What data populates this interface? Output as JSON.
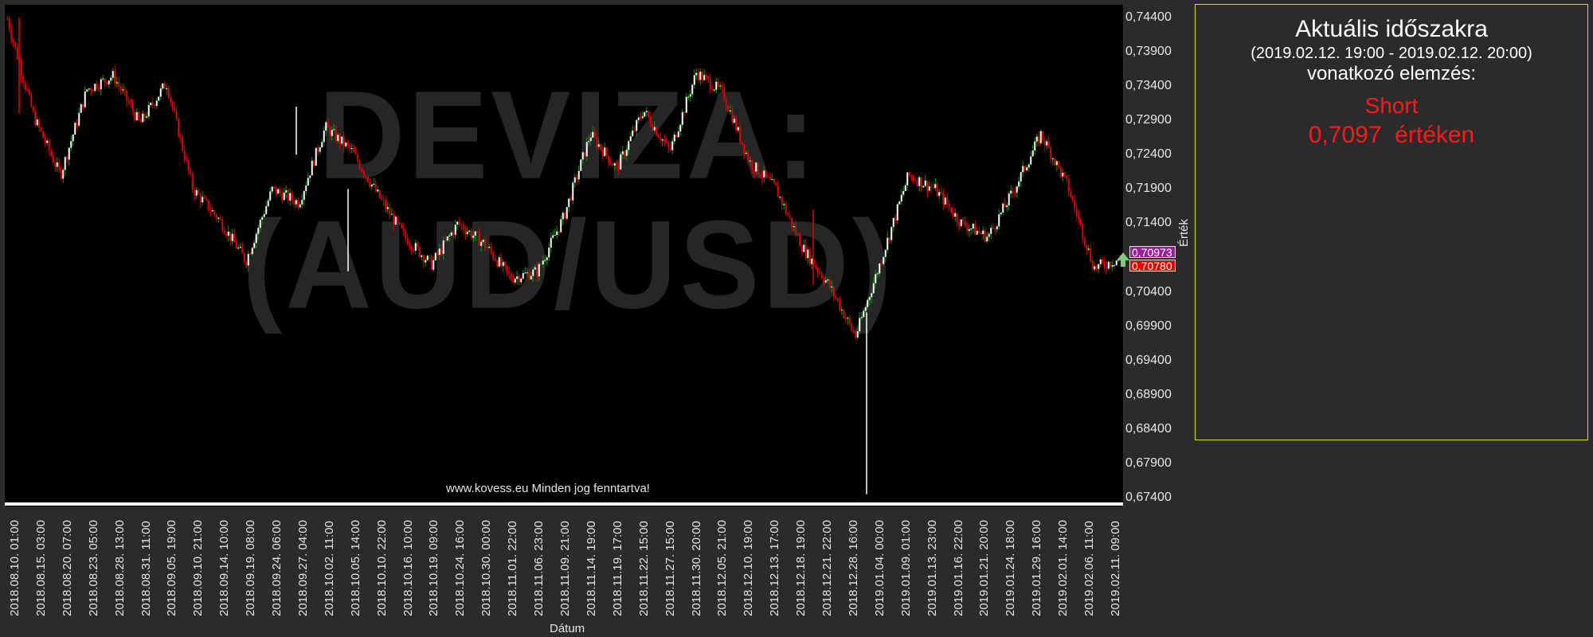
{
  "chart_data": {
    "type": "candlestick",
    "instrument_watermark_line1": "DEVIZA:",
    "instrument_watermark_line2": "(AUD/USD)",
    "xlabel": "Dátum",
    "ylabel": "Érték",
    "ylim": [
      0.674,
      0.744
    ],
    "y_ticks": [
      "0,74400",
      "0,73900",
      "0,73400",
      "0,72900",
      "0,72400",
      "0,71900",
      "0,71400",
      "0,70400",
      "0,69900",
      "0,69400",
      "0,68900",
      "0,68400",
      "0,67900",
      "0,67400"
    ],
    "x_ticks": [
      "2018.08.10. 01:00",
      "2018.08.15. 03:00",
      "2018.08.20. 07:00",
      "2018.08.23. 05:00",
      "2018.08.28. 13:00",
      "2018.08.31. 11:00",
      "2018.09.05. 19:00",
      "2018.09.10. 21:00",
      "2018.09.14. 10:00",
      "2018.09.19. 08:00",
      "2018.09.24. 06:00",
      "2018.09.27. 04:00",
      "2018.10.02. 11:00",
      "2018.10.05. 14:00",
      "2018.10.10. 22:00",
      "2018.10.16. 10:00",
      "2018.10.19. 09:00",
      "2018.10.24. 16:00",
      "2018.10.30. 00:00",
      "2018.11.01. 22:00",
      "2018.11.06. 23:00",
      "2018.11.09. 21:00",
      "2018.11.14. 19:00",
      "2018.11.19. 17:00",
      "2018.11.22. 15:00",
      "2018.11.27. 15:00",
      "2018.11.30. 20:00",
      "2018.12.05. 21:00",
      "2018.12.10. 19:00",
      "2018.12.13. 17:00",
      "2018.12.18. 19:00",
      "2018.12.21. 22:00",
      "2018.12.28. 16:00",
      "2019.01.04. 00:00",
      "2019.01.09. 01:00",
      "2019.01.13. 23:00",
      "2019.01.16. 22:00",
      "2019.01.21. 20:00",
      "2019.01.24. 18:00",
      "2019.01.29. 16:00",
      "2019.02.01. 14:00",
      "2019.02.06. 11:00",
      "2019.02.11. 09:00"
    ],
    "price_path": [
      [
        0.7445,
        0.743
      ],
      [
        0.729,
        0.73
      ],
      [
        0.722,
        0.72
      ],
      [
        0.731,
        0.736
      ],
      [
        0.738,
        0.733
      ],
      [
        0.726,
        0.731
      ],
      [
        0.736,
        0.733
      ],
      [
        0.72,
        0.718
      ],
      [
        0.717,
        0.712
      ],
      [
        0.709,
        0.708
      ],
      [
        0.72,
        0.718
      ],
      [
        0.714,
        0.72
      ],
      [
        0.729,
        0.727
      ],
      [
        0.725,
        0.724
      ],
      [
        0.721,
        0.715
      ],
      [
        0.716,
        0.708
      ],
      [
        0.706,
        0.71
      ],
      [
        0.713,
        0.715
      ],
      [
        0.712,
        0.71
      ],
      [
        0.706,
        0.706
      ],
      [
        0.708,
        0.706
      ],
      [
        0.708,
        0.722
      ],
      [
        0.726,
        0.728
      ],
      [
        0.72,
        0.724
      ],
      [
        0.731,
        0.73
      ],
      [
        0.726,
        0.723
      ],
      [
        0.734,
        0.738
      ],
      [
        0.736,
        0.73
      ],
      [
        0.724,
        0.722
      ],
      [
        0.72,
        0.718
      ],
      [
        0.713,
        0.708
      ],
      [
        0.704,
        0.706
      ],
      [
        0.695,
        0.7
      ],
      [
        0.704,
        0.714
      ],
      [
        0.72,
        0.722
      ],
      [
        0.718,
        0.72
      ],
      [
        0.715,
        0.713
      ],
      [
        0.709,
        0.715
      ],
      [
        0.719,
        0.719
      ],
      [
        0.728,
        0.726
      ],
      [
        0.724,
        0.715
      ],
      [
        0.708,
        0.707
      ],
      [
        0.708,
        0.7097
      ]
    ],
    "last_price_label": "0,70973",
    "signal_price_label": "0,70780",
    "copyright": "www.kovess.eu Minden jog fenntartva!"
  },
  "analysis_panel": {
    "title": "Aktuális időszakra",
    "period": "(2019.02.12. 19:00 - 2019.02.12. 20:00)",
    "subtitle": "vonatkozó elemzés:",
    "direction": "Short",
    "value_text": "0,7097  értéken"
  },
  "colors": {
    "background": "#2b2b2b",
    "plot_background": "#000000",
    "bull_candle": "#00a000",
    "bear_candle": "#e00000",
    "body": "#ffffff",
    "panel_border": "#d8e000",
    "signal_text": "#ff1a1a",
    "current_price_flag": "#9b1f9b",
    "signal_price_flag": "#e60000"
  }
}
